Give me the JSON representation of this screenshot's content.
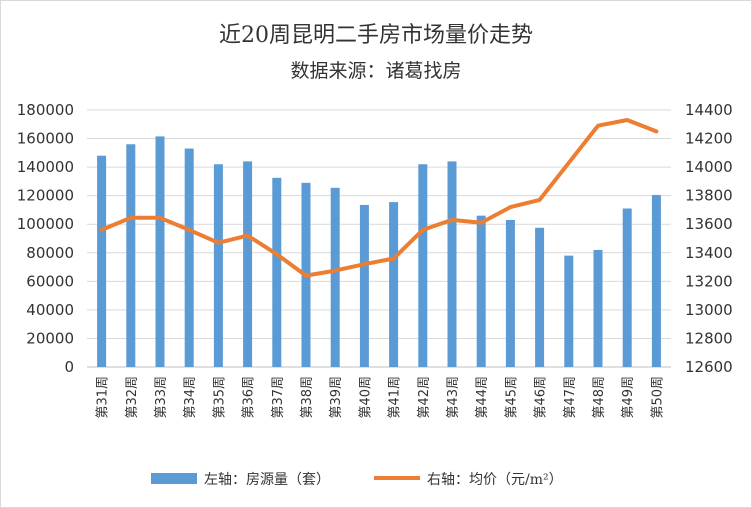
{
  "chart_data": {
    "type": "bar",
    "title": "近20周昆明二手房市场量价走势",
    "subtitle": "数据来源：诸葛找房",
    "categories": [
      "第31周",
      "第32周",
      "第33周",
      "第34周",
      "第35周",
      "第36周",
      "第37周",
      "第38周",
      "第39周",
      "第40周",
      "第41周",
      "第42周",
      "第43周",
      "第44周",
      "第45周",
      "第46周",
      "第47周",
      "第48周",
      "第49周",
      "第50周"
    ],
    "series": [
      {
        "name": "左轴：房源量（套）",
        "type": "bar",
        "axis": "left",
        "color": "#5b9bd5",
        "values": [
          148000,
          156000,
          161500,
          153000,
          142000,
          144000,
          132500,
          129000,
          125500,
          113500,
          115500,
          142000,
          144000,
          106000,
          103000,
          97500,
          78000,
          82000,
          111000,
          120500
        ]
      },
      {
        "name": "右轴：均价（元/m²）",
        "type": "line",
        "axis": "right",
        "color": "#ed7d31",
        "values": [
          13560,
          13645,
          13645,
          13560,
          13470,
          13520,
          13390,
          13240,
          13275,
          13320,
          13360,
          13560,
          13630,
          13610,
          13720,
          13770,
          14030,
          14290,
          14330,
          14250
        ]
      }
    ],
    "y_left": {
      "min": 0,
      "max": 180000,
      "step": 20000,
      "ticks": [
        "0",
        "20000",
        "40000",
        "60000",
        "80000",
        "100000",
        "120000",
        "140000",
        "160000",
        "180000"
      ]
    },
    "y_right": {
      "min": 12600,
      "max": 14400,
      "step": 200,
      "ticks": [
        "12600",
        "12800",
        "13000",
        "13200",
        "13400",
        "13600",
        "13800",
        "14000",
        "14200",
        "14400"
      ]
    },
    "grid": true,
    "legend_position": "bottom",
    "legend": {
      "bar_label": "左轴：房源量（套）",
      "line_label": "右轴：均价（元/m²）"
    }
  }
}
